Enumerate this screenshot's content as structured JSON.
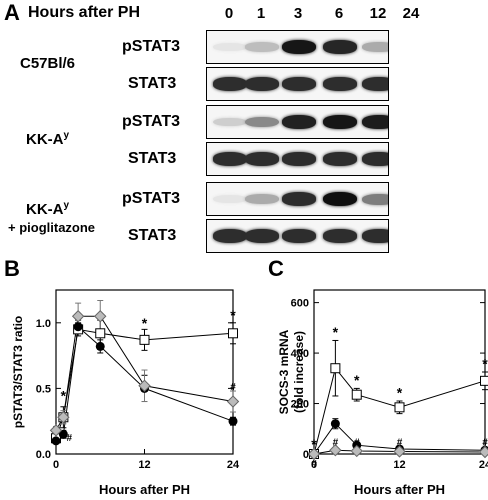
{
  "panel_a": {
    "letter": "A",
    "header": "Hours after PH",
    "hours": [
      "0",
      "1",
      "3",
      "6",
      "12",
      "24"
    ],
    "groups": [
      {
        "name": "C57Bl/6",
        "sub": "",
        "blots": [
          {
            "label": "pSTAT3",
            "intensity": [
              0.05,
              0.22,
              0.95,
              0.88,
              0.3,
              0.22
            ]
          },
          {
            "label": "STAT3",
            "intensity": [
              0.85,
              0.85,
              0.85,
              0.85,
              0.85,
              0.85
            ]
          }
        ]
      },
      {
        "name": "KK-A",
        "sup": "y",
        "sub": "",
        "blots": [
          {
            "label": "pSTAT3",
            "intensity": [
              0.15,
              0.45,
              0.9,
              0.95,
              0.92,
              0.92
            ]
          },
          {
            "label": "STAT3",
            "intensity": [
              0.85,
              0.85,
              0.85,
              0.85,
              0.85,
              0.85
            ]
          }
        ]
      },
      {
        "name": "KK-A",
        "sup": "y",
        "sub": "+ pioglitazone",
        "blots": [
          {
            "label": "pSTAT3",
            "intensity": [
              0.05,
              0.3,
              0.85,
              0.98,
              0.5,
              0.25
            ]
          },
          {
            "label": "STAT3",
            "intensity": [
              0.85,
              0.85,
              0.85,
              0.85,
              0.85,
              0.85
            ]
          }
        ]
      }
    ]
  },
  "chart_data": [
    {
      "letter": "B",
      "type": "line",
      "xlabel": "Hours after PH",
      "ylabel": "pSTAT3/STAT3 ratio",
      "xlim": [
        0,
        24
      ],
      "ylim": [
        0,
        1.25
      ],
      "xticks": [
        0,
        12,
        24
      ],
      "yticks": [
        "0.0",
        "0.5",
        "1.0"
      ],
      "series": [
        {
          "marker": "square-open",
          "x": [
            0,
            1,
            3,
            6,
            12,
            24
          ],
          "y": [
            0.12,
            0.28,
            0.95,
            0.92,
            0.87,
            0.92
          ],
          "err": [
            0.03,
            0.08,
            0.05,
            0.1,
            0.08,
            0.08
          ]
        },
        {
          "marker": "circle-filled",
          "x": [
            0,
            1,
            3,
            6,
            12,
            24
          ],
          "y": [
            0.1,
            0.15,
            0.97,
            0.82,
            0.5,
            0.25
          ],
          "err": [
            0.02,
            0.03,
            0.05,
            0.05,
            0.1,
            0.03
          ]
        },
        {
          "marker": "diamond-gray",
          "x": [
            0,
            1,
            3,
            6,
            12,
            24
          ],
          "y": [
            0.18,
            0.28,
            1.05,
            1.05,
            0.52,
            0.4
          ],
          "err": [
            0.03,
            0.05,
            0.1,
            0.12,
            0.12,
            0.08
          ]
        }
      ],
      "annotations": [
        {
          "text": "*",
          "x": 1,
          "y": 0.44
        },
        {
          "text": "*",
          "x": 12,
          "y": 0.99
        },
        {
          "text": "*",
          "x": 24,
          "y": 1.05
        },
        {
          "text": "#",
          "x": 1.8,
          "y": 0.13
        },
        {
          "text": "#",
          "x": 24,
          "y": 0.52
        }
      ]
    },
    {
      "letter": "C",
      "type": "line",
      "xlabel": "Hours after PH",
      "ylabel": "SOCS-3 mRNA\n(fold increase)",
      "xlim": [
        0,
        24
      ],
      "ylim": [
        0,
        650
      ],
      "xticks": [
        0,
        12,
        24
      ],
      "yticks": [
        "0",
        "200",
        "400",
        "600"
      ],
      "series": [
        {
          "marker": "square-open",
          "x": [
            0,
            3,
            6,
            12,
            24
          ],
          "y": [
            0,
            340,
            235,
            185,
            290
          ],
          "err": [
            0,
            110,
            25,
            25,
            35
          ]
        },
        {
          "marker": "circle-filled",
          "x": [
            0,
            3,
            6,
            12,
            24
          ],
          "y": [
            0,
            120,
            35,
            20,
            15
          ],
          "err": [
            0,
            20,
            5,
            5,
            5
          ]
        },
        {
          "marker": "diamond-gray",
          "x": [
            0,
            3,
            6,
            12,
            24
          ],
          "y": [
            0,
            15,
            12,
            10,
            8
          ],
          "err": [
            0,
            5,
            4,
            3,
            3
          ]
        }
      ],
      "annotations": [
        {
          "text": "*",
          "x": 0,
          "y": 35
        },
        {
          "text": "#",
          "x": 0,
          "y": -35
        },
        {
          "text": "*",
          "x": 3,
          "y": 480
        },
        {
          "text": "*",
          "x": 6,
          "y": 290
        },
        {
          "text": "*",
          "x": 12,
          "y": 240
        },
        {
          "text": "*",
          "x": 24,
          "y": 355
        },
        {
          "text": "#",
          "x": 3,
          "y": 50
        },
        {
          "text": "#",
          "x": 6,
          "y": 50
        },
        {
          "text": "#",
          "x": 12,
          "y": 50
        },
        {
          "text": "#",
          "x": 24,
          "y": 50
        }
      ]
    }
  ]
}
